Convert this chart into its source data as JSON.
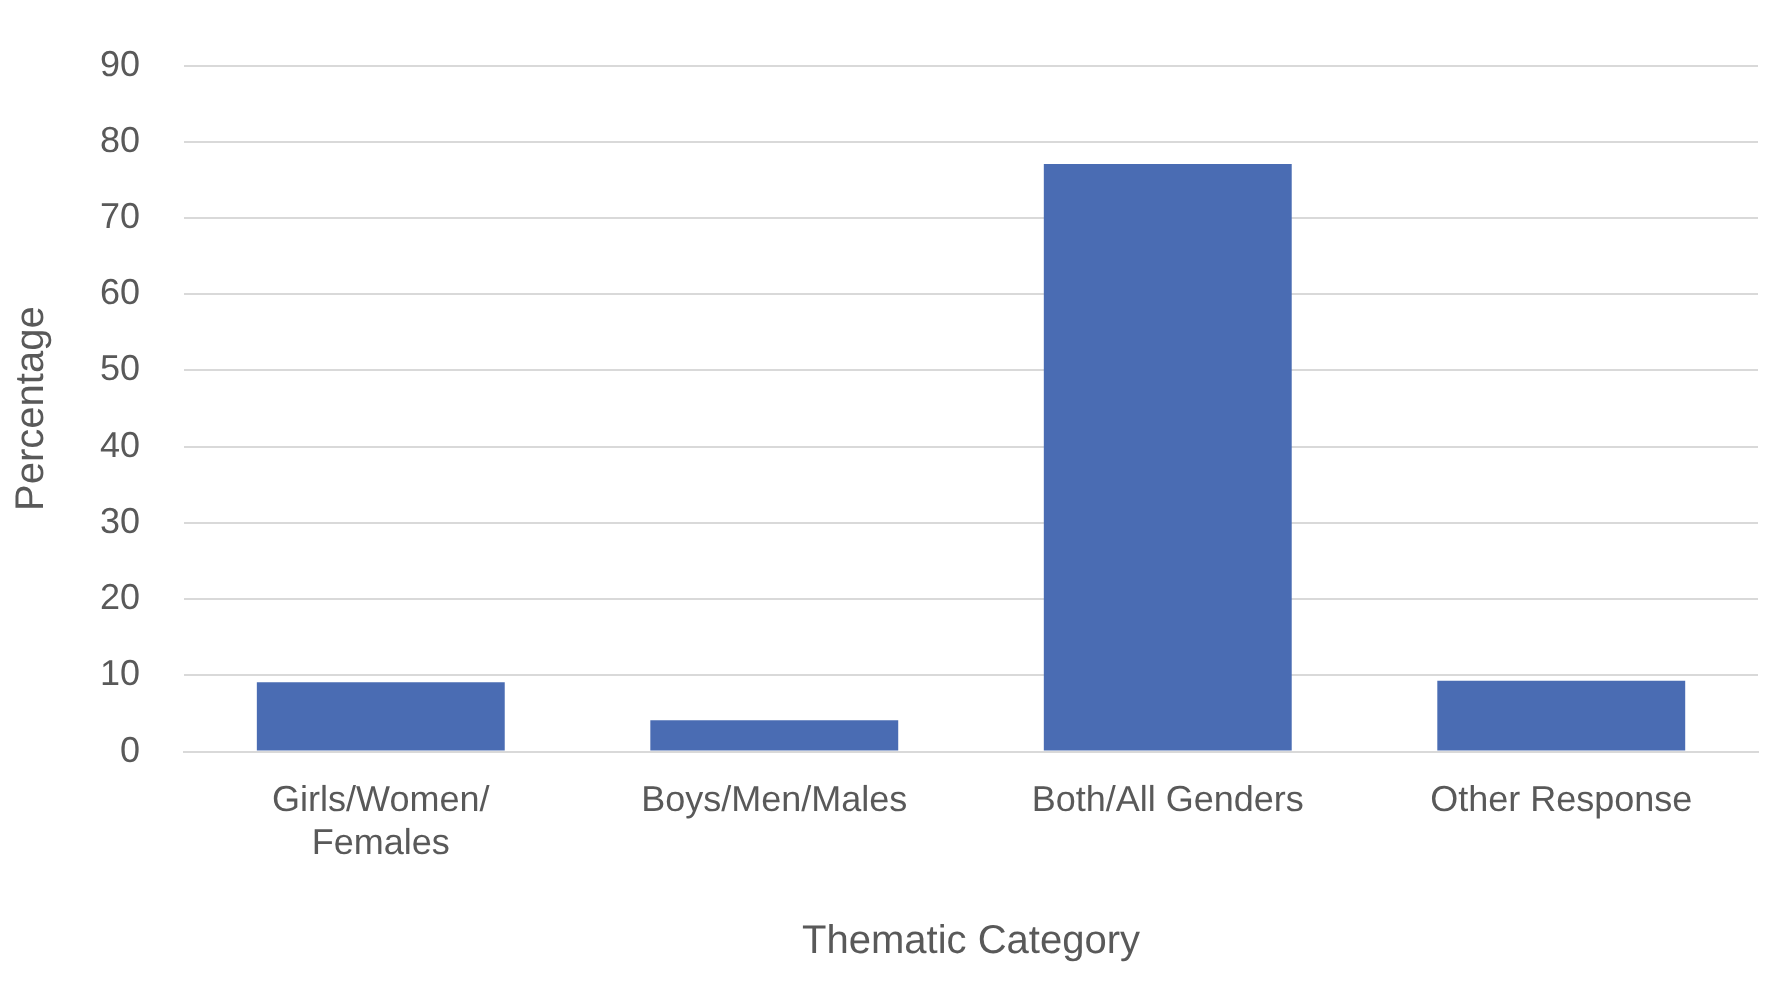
{
  "chart_data": {
    "type": "bar",
    "xlabel": "Thematic Category",
    "ylabel": "Percentage",
    "categories": [
      "Girls/Women/Females",
      "Boys/Men/Males",
      "Both/All Genders",
      "Other Response"
    ],
    "values": [
      9.1,
      4.1,
      77.1,
      9.3
    ],
    "color": "#4a6cb3",
    "ylim": [
      0,
      90
    ],
    "yticks": [
      0,
      10,
      20,
      30,
      40,
      50,
      60,
      70,
      80,
      90
    ],
    "grid": "y",
    "legend": false
  }
}
